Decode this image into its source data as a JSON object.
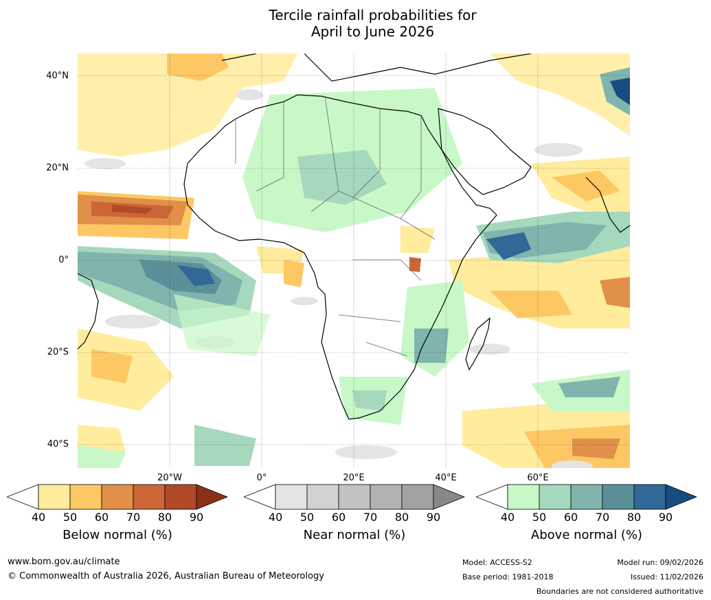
{
  "title": {
    "line1": "Tercile rainfall probabilities for",
    "line2": "April to June 2026"
  },
  "map": {
    "lat_labels": [
      "40°N",
      "20°N",
      "0°",
      "20°S",
      "40°S"
    ],
    "lon_labels": [
      "20°W",
      "0°",
      "20°E",
      "40°E",
      "60°E"
    ]
  },
  "colorbars": [
    {
      "id": "below",
      "title": "Below normal (%)",
      "ticks": [
        "40",
        "50",
        "60",
        "70",
        "80",
        "90"
      ],
      "colors": [
        "#ffffff",
        "#ffec9c",
        "#fdc864",
        "#e09048",
        "#cc6636",
        "#b04a28",
        "#8c3018"
      ]
    },
    {
      "id": "near",
      "title": "Near normal (%)",
      "ticks": [
        "40",
        "50",
        "60",
        "70",
        "80",
        "90"
      ],
      "colors": [
        "#ffffff",
        "#e4e4e4",
        "#d2d2d2",
        "#c2c2c2",
        "#b2b2b2",
        "#a2a2a2",
        "#888888"
      ]
    },
    {
      "id": "above",
      "title": "Above normal (%)",
      "ticks": [
        "40",
        "50",
        "60",
        "70",
        "80",
        "90"
      ],
      "colors": [
        "#ffffff",
        "#c8f8c8",
        "#a6d8be",
        "#80b4ac",
        "#5c9098",
        "#306898",
        "#174c80"
      ]
    }
  ],
  "footer": {
    "website": "www.bom.gov.au/climate",
    "copyright": "© Commonwealth of Australia 2026, Australian Bureau of Meteorology",
    "model": "Model: ACCESS-S2",
    "base_period": "Base period: 1981-2018",
    "model_run": "Model run: 09/02/2026",
    "issued": "Issued: 11/02/2026",
    "disclaimer": "Boundaries are not considered authoritative"
  }
}
